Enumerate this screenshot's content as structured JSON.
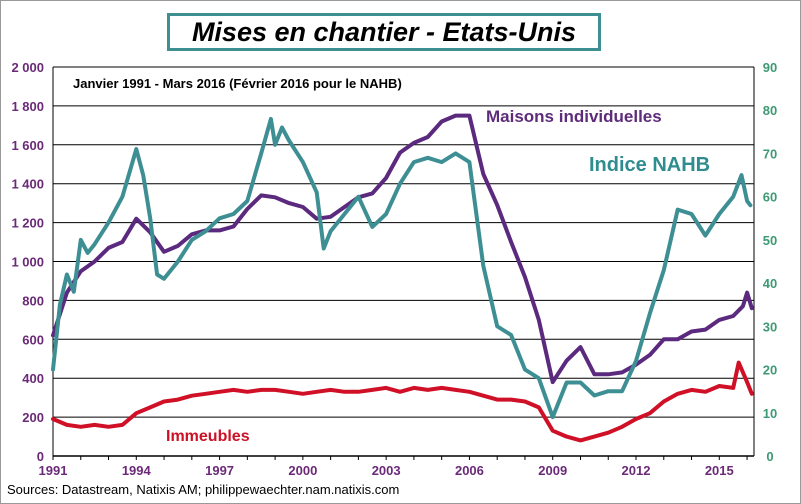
{
  "title": "Mises en chantier - Etats-Unis",
  "period_note": "Janvier 1991 - Mars 2016 (Février 2016 pour le NAHB)",
  "source": "Sources: Datastream, Natixis AM; philippewaechter.nam.natixis.com",
  "chart_data": {
    "type": "line",
    "left_axis": {
      "min": 0,
      "max": 2000,
      "step": 200,
      "ticks": [
        "0",
        "200",
        "400",
        "600",
        "800",
        "1 000",
        "1 200",
        "1 400",
        "1 600",
        "1 800",
        "2 000"
      ],
      "color": "#6b2a78"
    },
    "right_axis": {
      "min": 0,
      "max": 90,
      "step": 10,
      "ticks": [
        "0",
        "10",
        "20",
        "30",
        "40",
        "50",
        "60",
        "70",
        "80",
        "90"
      ],
      "color": "#3d9a74"
    },
    "x_axis": {
      "min": 1991,
      "max": 2016.25,
      "ticks": [
        "1991",
        "1994",
        "1997",
        "2000",
        "2003",
        "2006",
        "2009",
        "2012",
        "2015"
      ]
    },
    "grid": "horizontal",
    "series": [
      {
        "name": "Maisons individuelles",
        "axis": "left",
        "color": "#5b2a7e",
        "x": [
          1991.0,
          1991.5,
          1992.0,
          1992.5,
          1993.0,
          1993.5,
          1994.0,
          1994.5,
          1995.0,
          1995.5,
          1996.0,
          1996.5,
          1997.0,
          1997.5,
          1998.0,
          1998.5,
          1999.0,
          1999.5,
          2000.0,
          2000.5,
          2001.0,
          2001.5,
          2002.0,
          2002.5,
          2003.0,
          2003.5,
          2004.0,
          2004.5,
          2005.0,
          2005.5,
          2006.0,
          2006.5,
          2007.0,
          2007.5,
          2008.0,
          2008.5,
          2009.0,
          2009.5,
          2010.0,
          2010.5,
          2011.0,
          2011.5,
          2012.0,
          2012.5,
          2013.0,
          2013.5,
          2014.0,
          2014.5,
          2015.0,
          2015.5,
          2015.85,
          2016.0,
          2016.17
        ],
        "y": [
          620,
          840,
          950,
          1000,
          1070,
          1100,
          1220,
          1150,
          1050,
          1080,
          1140,
          1160,
          1160,
          1180,
          1270,
          1340,
          1330,
          1300,
          1280,
          1220,
          1230,
          1280,
          1330,
          1350,
          1430,
          1560,
          1610,
          1640,
          1720,
          1750,
          1750,
          1450,
          1290,
          1100,
          920,
          700,
          380,
          490,
          560,
          420,
          420,
          430,
          470,
          520,
          600,
          600,
          640,
          650,
          700,
          720,
          770,
          840,
          760
        ]
      },
      {
        "name": "Immeubles",
        "axis": "left",
        "color": "#d01027",
        "x": [
          1991.0,
          1991.5,
          1992.0,
          1992.5,
          1993.0,
          1993.5,
          1994.0,
          1994.5,
          1995.0,
          1995.5,
          1996.0,
          1996.5,
          1997.0,
          1997.5,
          1998.0,
          1998.5,
          1999.0,
          1999.5,
          2000.0,
          2000.5,
          2001.0,
          2001.5,
          2002.0,
          2002.5,
          2003.0,
          2003.5,
          2004.0,
          2004.5,
          2005.0,
          2005.5,
          2006.0,
          2006.5,
          2007.0,
          2007.5,
          2008.0,
          2008.5,
          2009.0,
          2009.5,
          2010.0,
          2010.5,
          2011.0,
          2011.5,
          2012.0,
          2012.5,
          2013.0,
          2013.5,
          2014.0,
          2014.5,
          2015.0,
          2015.5,
          2015.7,
          2016.0,
          2016.17
        ],
        "y": [
          190,
          160,
          150,
          160,
          150,
          160,
          220,
          250,
          280,
          290,
          310,
          320,
          330,
          340,
          330,
          340,
          340,
          330,
          320,
          330,
          340,
          330,
          330,
          340,
          350,
          330,
          350,
          340,
          350,
          340,
          330,
          310,
          290,
          290,
          280,
          250,
          130,
          100,
          80,
          100,
          120,
          150,
          190,
          220,
          280,
          320,
          340,
          330,
          360,
          350,
          480,
          380,
          320
        ]
      },
      {
        "name": "Indice NAHB",
        "axis": "right",
        "color": "#3d8f93",
        "x": [
          1991.0,
          1991.25,
          1991.5,
          1991.75,
          1992.0,
          1992.25,
          1992.5,
          1993.0,
          1993.5,
          1994.0,
          1994.25,
          1994.5,
          1994.75,
          1995.0,
          1995.5,
          1996.0,
          1996.5,
          1997.0,
          1997.5,
          1998.0,
          1998.5,
          1998.85,
          1999.0,
          1999.25,
          1999.5,
          2000.0,
          2000.5,
          2000.75,
          2001.0,
          2001.5,
          2002.0,
          2002.5,
          2003.0,
          2003.5,
          2004.0,
          2004.5,
          2005.0,
          2005.5,
          2006.0,
          2006.5,
          2007.0,
          2007.5,
          2008.0,
          2008.5,
          2009.0,
          2009.5,
          2010.0,
          2010.5,
          2011.0,
          2011.5,
          2012.0,
          2012.5,
          2013.0,
          2013.5,
          2014.0,
          2014.5,
          2015.0,
          2015.5,
          2015.8,
          2016.0,
          2016.12
        ],
        "y": [
          20,
          35,
          42,
          38,
          50,
          47,
          49,
          54,
          60,
          71,
          65,
          55,
          42,
          41,
          45,
          50,
          52,
          55,
          56,
          59,
          70,
          78,
          72,
          76,
          73,
          68,
          61,
          48,
          52,
          56,
          60,
          53,
          56,
          63,
          68,
          69,
          68,
          70,
          68,
          44,
          30,
          28,
          20,
          18,
          9,
          17,
          17,
          14,
          15,
          15,
          22,
          33,
          43,
          57,
          56,
          51,
          56,
          60,
          65,
          59,
          58
        ]
      }
    ]
  }
}
